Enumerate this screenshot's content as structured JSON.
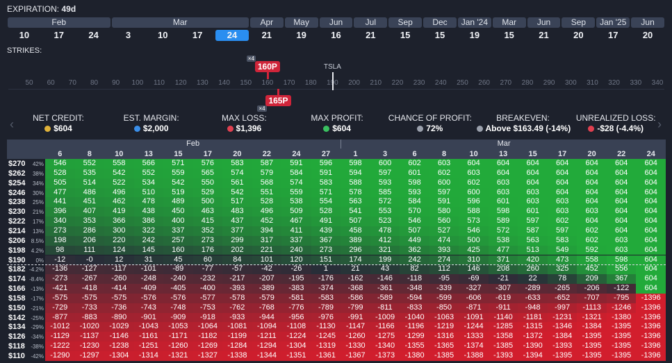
{
  "header": {
    "expiration_label": "EXPIRATION:",
    "expiration_value": "49d"
  },
  "expirations": [
    {
      "month": "Feb",
      "days": [
        10,
        17,
        24
      ]
    },
    {
      "month": "Mar",
      "days": [
        3,
        10,
        17,
        24
      ]
    },
    {
      "month": "Apr",
      "days": [
        21
      ]
    },
    {
      "month": "May",
      "days": [
        19
      ]
    },
    {
      "month": "Jun",
      "days": [
        16
      ]
    },
    {
      "month": "Jul",
      "days": [
        21
      ]
    },
    {
      "month": "Sep",
      "days": [
        15
      ]
    },
    {
      "month": "Dec",
      "days": [
        15
      ]
    },
    {
      "month": "Jan '24",
      "days": [
        19
      ]
    },
    {
      "month": "Mar",
      "days": [
        15
      ]
    },
    {
      "month": "Jun",
      "days": [
        21
      ]
    },
    {
      "month": "Sep",
      "days": [
        20
      ]
    },
    {
      "month": "Jan '25",
      "days": [
        17
      ]
    },
    {
      "month": "Jun",
      "days": [
        20
      ]
    }
  ],
  "strikes": {
    "label": "STRIKES:",
    "ticks": [
      50,
      60,
      70,
      80,
      90,
      100,
      110,
      120,
      130,
      140,
      150,
      160,
      170,
      180,
      190,
      200,
      210,
      220,
      230,
      240,
      250,
      260,
      270,
      280,
      290,
      300,
      310,
      320,
      330,
      340
    ],
    "underlying": "TSLA",
    "price": 190,
    "legs": [
      {
        "label": "160P",
        "strike": 160,
        "qty": "×4",
        "side": "above"
      },
      {
        "label": "165P",
        "strike": 165,
        "qty": "×4",
        "side": "below"
      }
    ]
  },
  "stats": [
    {
      "label": "NET CREDIT:",
      "value": "$604"
    },
    {
      "label": "EST. MARGIN:",
      "value": "$2,000"
    },
    {
      "label": "MAX LOSS:",
      "value": "$1,396"
    },
    {
      "label": "MAX PROFIT:",
      "value": "$604"
    },
    {
      "label": "CHANCE OF PROFIT:",
      "value": "72%"
    },
    {
      "label": "BREAKEVEN:",
      "value": "Above $163.49 (-14%)"
    },
    {
      "label": "UNREALIZED LOSS:",
      "value": "-$28 (-4.4%)"
    }
  ],
  "table": {
    "months": [
      {
        "label": "Feb",
        "days": [
          6,
          8,
          10,
          13,
          15,
          17,
          20,
          22,
          24,
          27
        ]
      },
      {
        "label": "Mar",
        "days": [
          1,
          3,
          6,
          8,
          10,
          13,
          15,
          17,
          20,
          22,
          24
        ]
      }
    ],
    "rows": [
      {
        "strike": "$270",
        "change": "42%",
        "values": [
          546,
          552,
          558,
          566,
          571,
          576,
          583,
          587,
          591,
          596,
          598,
          600,
          602,
          603,
          604,
          604,
          604,
          604,
          604,
          604,
          604
        ]
      },
      {
        "strike": "$262",
        "change": "38%",
        "values": [
          528,
          535,
          542,
          552,
          559,
          565,
          574,
          579,
          584,
          591,
          594,
          597,
          601,
          602,
          603,
          604,
          604,
          604,
          604,
          604,
          604
        ]
      },
      {
        "strike": "$254",
        "change": "34%",
        "values": [
          505,
          514,
          522,
          534,
          542,
          550,
          561,
          568,
          574,
          583,
          588,
          593,
          598,
          600,
          602,
          603,
          604,
          604,
          604,
          604,
          604
        ]
      },
      {
        "strike": "$246",
        "change": "30%",
        "values": [
          477,
          486,
          496,
          510,
          519,
          529,
          542,
          551,
          559,
          571,
          578,
          585,
          593,
          597,
          600,
          603,
          603,
          604,
          604,
          604,
          604
        ]
      },
      {
        "strike": "$238",
        "change": "25%",
        "values": [
          441,
          451,
          462,
          478,
          489,
          500,
          517,
          528,
          538,
          554,
          563,
          572,
          584,
          591,
          596,
          601,
          603,
          603,
          604,
          604,
          604
        ]
      },
      {
        "strike": "$230",
        "change": "21%",
        "values": [
          396,
          407,
          419,
          438,
          450,
          463,
          483,
          496,
          509,
          528,
          541,
          553,
          570,
          580,
          588,
          598,
          601,
          603,
          603,
          604,
          604
        ]
      },
      {
        "strike": "$222",
        "change": "17%",
        "values": [
          340,
          353,
          366,
          386,
          400,
          415,
          437,
          452,
          467,
          491,
          507,
          523,
          546,
          560,
          573,
          589,
          597,
          602,
          604,
          604,
          604
        ]
      },
      {
        "strike": "$214",
        "change": "13%",
        "values": [
          273,
          286,
          300,
          322,
          337,
          352,
          377,
          394,
          411,
          439,
          458,
          478,
          507,
          527,
          546,
          572,
          587,
          597,
          602,
          604,
          604
        ]
      },
      {
        "strike": "$206",
        "change": "8.5%",
        "values": [
          198,
          206,
          220,
          242,
          257,
          273,
          299,
          317,
          337,
          367,
          389,
          412,
          449,
          474,
          500,
          538,
          563,
          583,
          602,
          603,
          604
        ]
      },
      {
        "strike": "$198",
        "change": "4.2%",
        "values": [
          98,
          111,
          124,
          145,
          160,
          176,
          202,
          221,
          240,
          273,
          296,
          321,
          362,
          393,
          425,
          477,
          513,
          549,
          592,
          603,
          604
        ]
      },
      {
        "strike": "$190",
        "change": "0%",
        "values": [
          -12,
          "-0",
          12,
          31,
          45,
          60,
          84,
          101,
          120,
          151,
          174,
          199,
          242,
          274,
          310,
          371,
          420,
          473,
          558,
          598,
          604
        ]
      },
      {
        "strike": "$182",
        "change": "-4.2%",
        "values": [
          -136,
          -127,
          -117,
          -101,
          -89,
          -77,
          -57,
          -42,
          -26,
          1,
          21,
          43,
          82,
          112,
          146,
          208,
          260,
          325,
          452,
          556,
          604
        ]
      },
      {
        "strike": "$174",
        "change": "-8.4%",
        "values": [
          -273,
          -267,
          -260,
          -248,
          -240,
          -232,
          -217,
          -207,
          -195,
          -176,
          -162,
          -146,
          -118,
          -95,
          -69,
          -21,
          22,
          78,
          209,
          367,
          604
        ]
      },
      {
        "strike": "$166",
        "change": "-13%",
        "values": [
          -421,
          -418,
          -414,
          -409,
          -405,
          -400,
          -393,
          -389,
          -383,
          -374,
          -368,
          -361,
          -348,
          -339,
          -327,
          -307,
          -289,
          -265,
          -206,
          -122,
          604
        ]
      },
      {
        "strike": "$158",
        "change": "-17%",
        "values": [
          -575,
          -575,
          -575,
          -576,
          -576,
          -577,
          -578,
          -579,
          -581,
          -583,
          -586,
          -589,
          -594,
          -599,
          -606,
          -619,
          -633,
          -652,
          -707,
          -795,
          -1396
        ]
      },
      {
        "strike": "$150",
        "change": "-21%",
        "values": [
          -729,
          -733,
          -736,
          -743,
          -748,
          -753,
          -762,
          -768,
          -776,
          -789,
          -799,
          -811,
          -833,
          -850,
          -871,
          -911,
          -948,
          -997,
          -1113,
          -1246,
          -1396
        ]
      },
      {
        "strike": "$142",
        "change": "-25%",
        "values": [
          -877,
          -883,
          -890,
          -901,
          -909,
          -918,
          -933,
          -944,
          -956,
          -976,
          -991,
          -1009,
          -1040,
          -1063,
          -1091,
          -1140,
          -1181,
          -1231,
          -1321,
          -1380,
          -1396
        ]
      },
      {
        "strike": "$134",
        "change": "-29%",
        "values": [
          -1012,
          -1020,
          -1029,
          -1043,
          -1053,
          -1064,
          -1081,
          -1094,
          -1108,
          -1130,
          -1147,
          -1166,
          -1196,
          -1219,
          -1244,
          -1285,
          -1315,
          -1346,
          -1384,
          -1395,
          -1396
        ]
      },
      {
        "strike": "$126",
        "change": "-34%",
        "values": [
          -1129,
          -1137,
          -1146,
          -1161,
          -1171,
          -1182,
          -1199,
          -1211,
          -1224,
          -1245,
          -1260,
          -1275,
          -1299,
          -1316,
          -1333,
          -1358,
          -1372,
          -1384,
          -1395,
          -1395,
          -1396
        ]
      },
      {
        "strike": "$118",
        "change": "-38%",
        "values": [
          -1222,
          -1230,
          -1238,
          -1251,
          -1260,
          -1269,
          -1284,
          -1294,
          -1304,
          -1319,
          -1330,
          -1340,
          -1355,
          -1365,
          -1374,
          -1385,
          -1390,
          -1393,
          -1395,
          -1395,
          -1396
        ]
      },
      {
        "strike": "$110",
        "change": "-42%",
        "values": [
          -1290,
          -1297,
          -1304,
          -1314,
          -1321,
          -1327,
          -1338,
          -1344,
          -1351,
          -1361,
          -1367,
          -1373,
          -1380,
          -1385,
          -1388,
          -1393,
          -1394,
          -1395,
          -1395,
          -1395,
          -1396
        ]
      }
    ]
  }
}
